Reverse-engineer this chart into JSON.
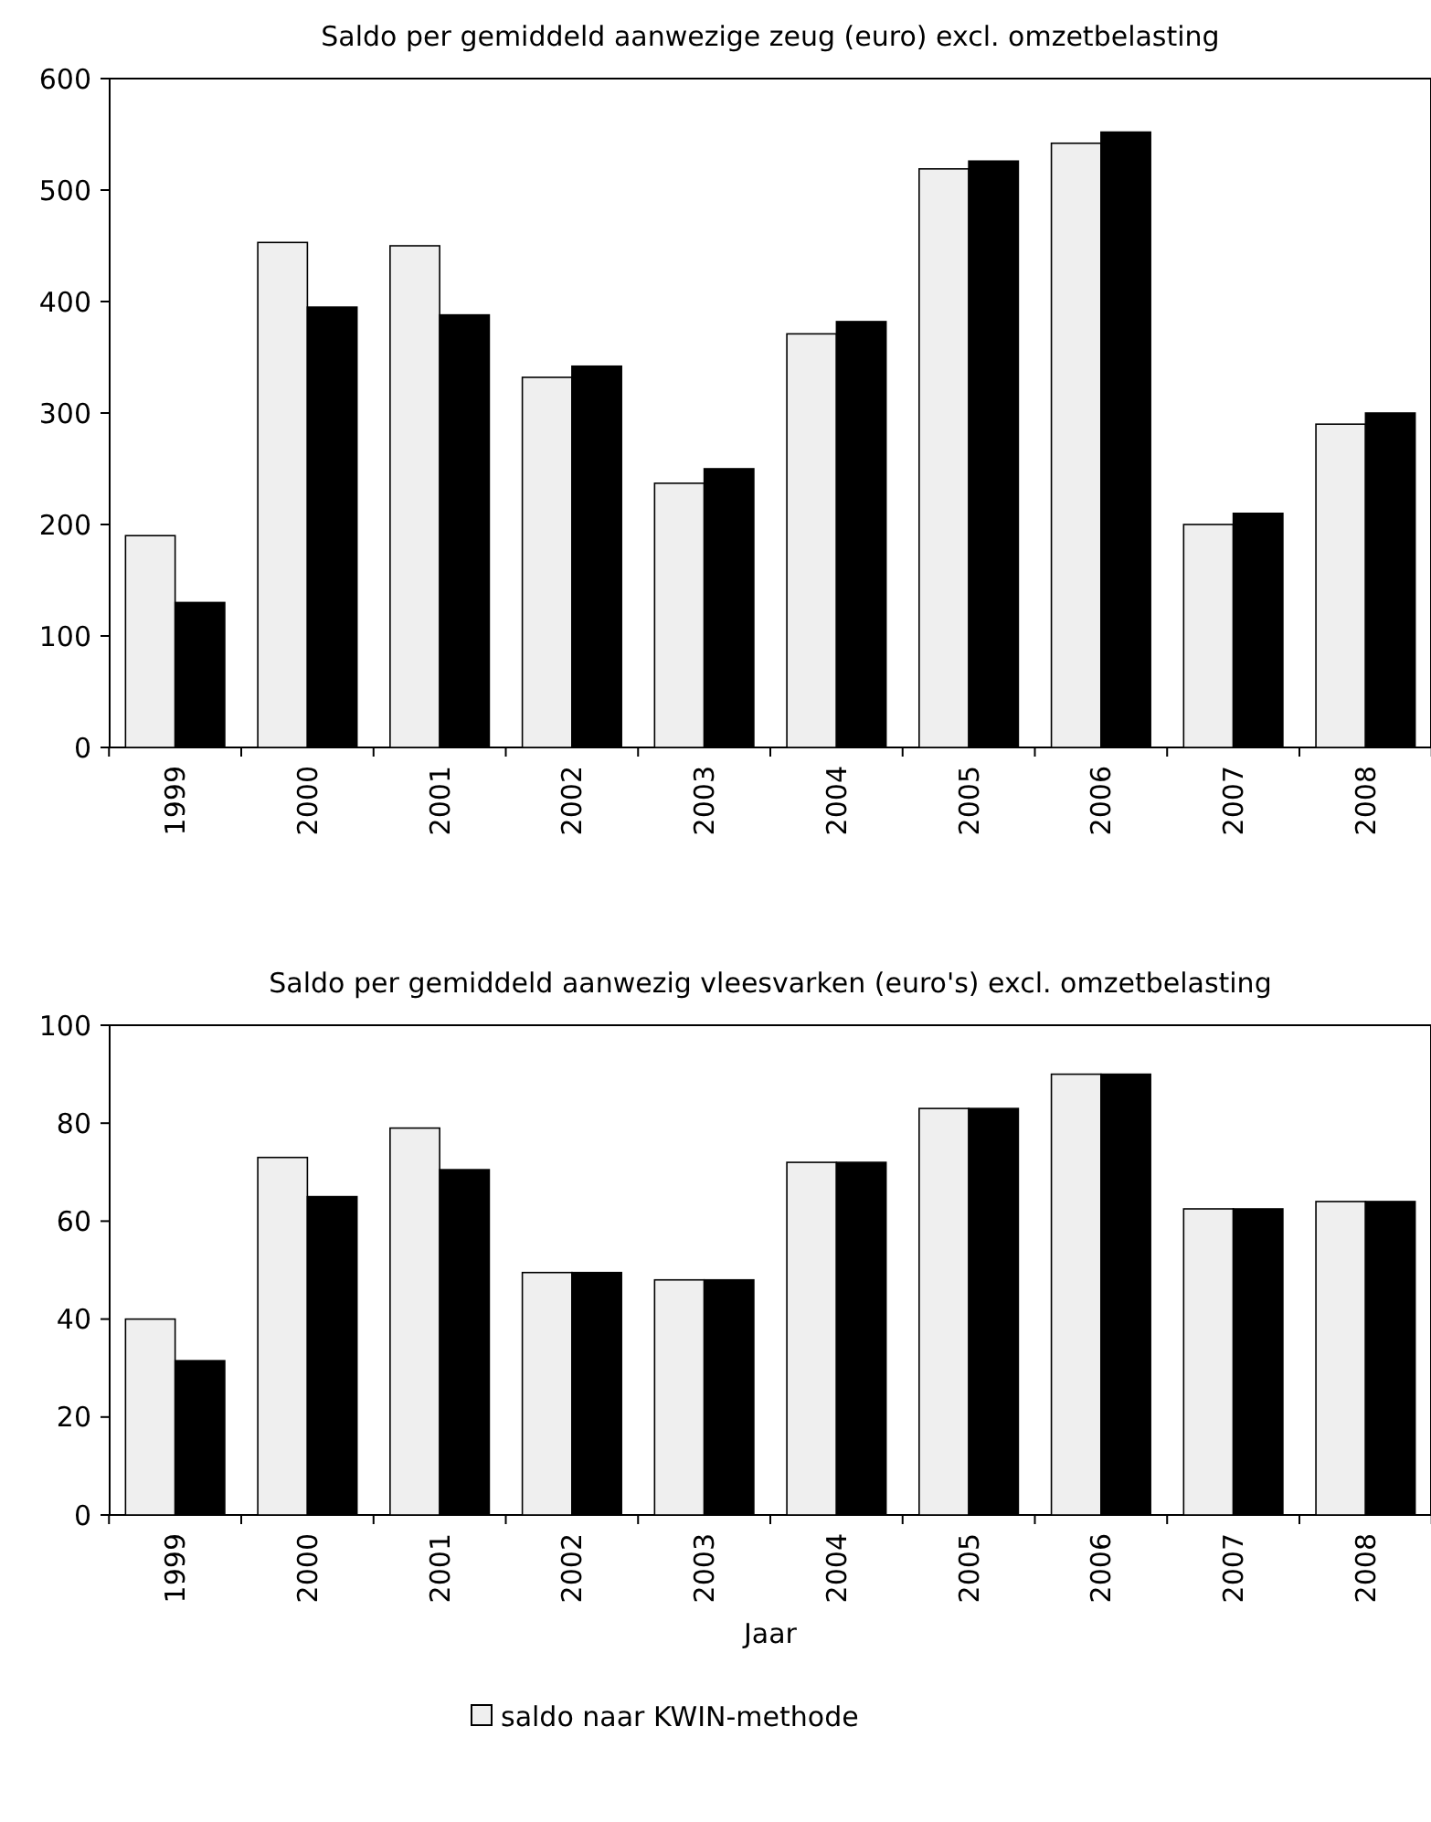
{
  "chart_data": [
    {
      "type": "bar",
      "title": "Saldo per gemiddeld aanwezige zeug (euro) excl. omzetbelasting",
      "categories": [
        "1999",
        "2000",
        "2001",
        "2002",
        "2003",
        "2004",
        "2005",
        "2006",
        "2007",
        "2008"
      ],
      "series": [
        {
          "color": "#efefef",
          "values": [
            190,
            453,
            450,
            332,
            237,
            371,
            519,
            542,
            200,
            290
          ]
        },
        {
          "color": "#000000",
          "values": [
            130,
            395,
            388,
            342,
            250,
            382,
            526,
            552,
            210,
            300
          ]
        }
      ],
      "ylim": [
        0,
        600
      ],
      "yticks": [
        0,
        100,
        200,
        300,
        400,
        500,
        600
      ],
      "grid": false,
      "legend": false
    },
    {
      "type": "bar",
      "title": "Saldo per gemiddeld aanwezig vleesvarken (euro's) excl. omzetbelasting",
      "xlabel": "Jaar",
      "categories": [
        "1999",
        "2000",
        "2001",
        "2002",
        "2003",
        "2004",
        "2005",
        "2006",
        "2007",
        "2008"
      ],
      "series": [
        {
          "name": "saldo naar KWIN-methode",
          "color": "#efefef",
          "values": [
            40,
            73,
            79,
            49.5,
            48,
            72,
            83,
            90,
            62.5,
            64
          ]
        },
        {
          "color": "#000000",
          "values": [
            31.5,
            65,
            70.5,
            49.5,
            48,
            72,
            83,
            90,
            62.5,
            64
          ]
        }
      ],
      "ylim": [
        0,
        100
      ],
      "yticks": [
        0,
        20,
        40,
        60,
        80,
        100
      ],
      "grid": false,
      "legend": "bottom"
    }
  ]
}
